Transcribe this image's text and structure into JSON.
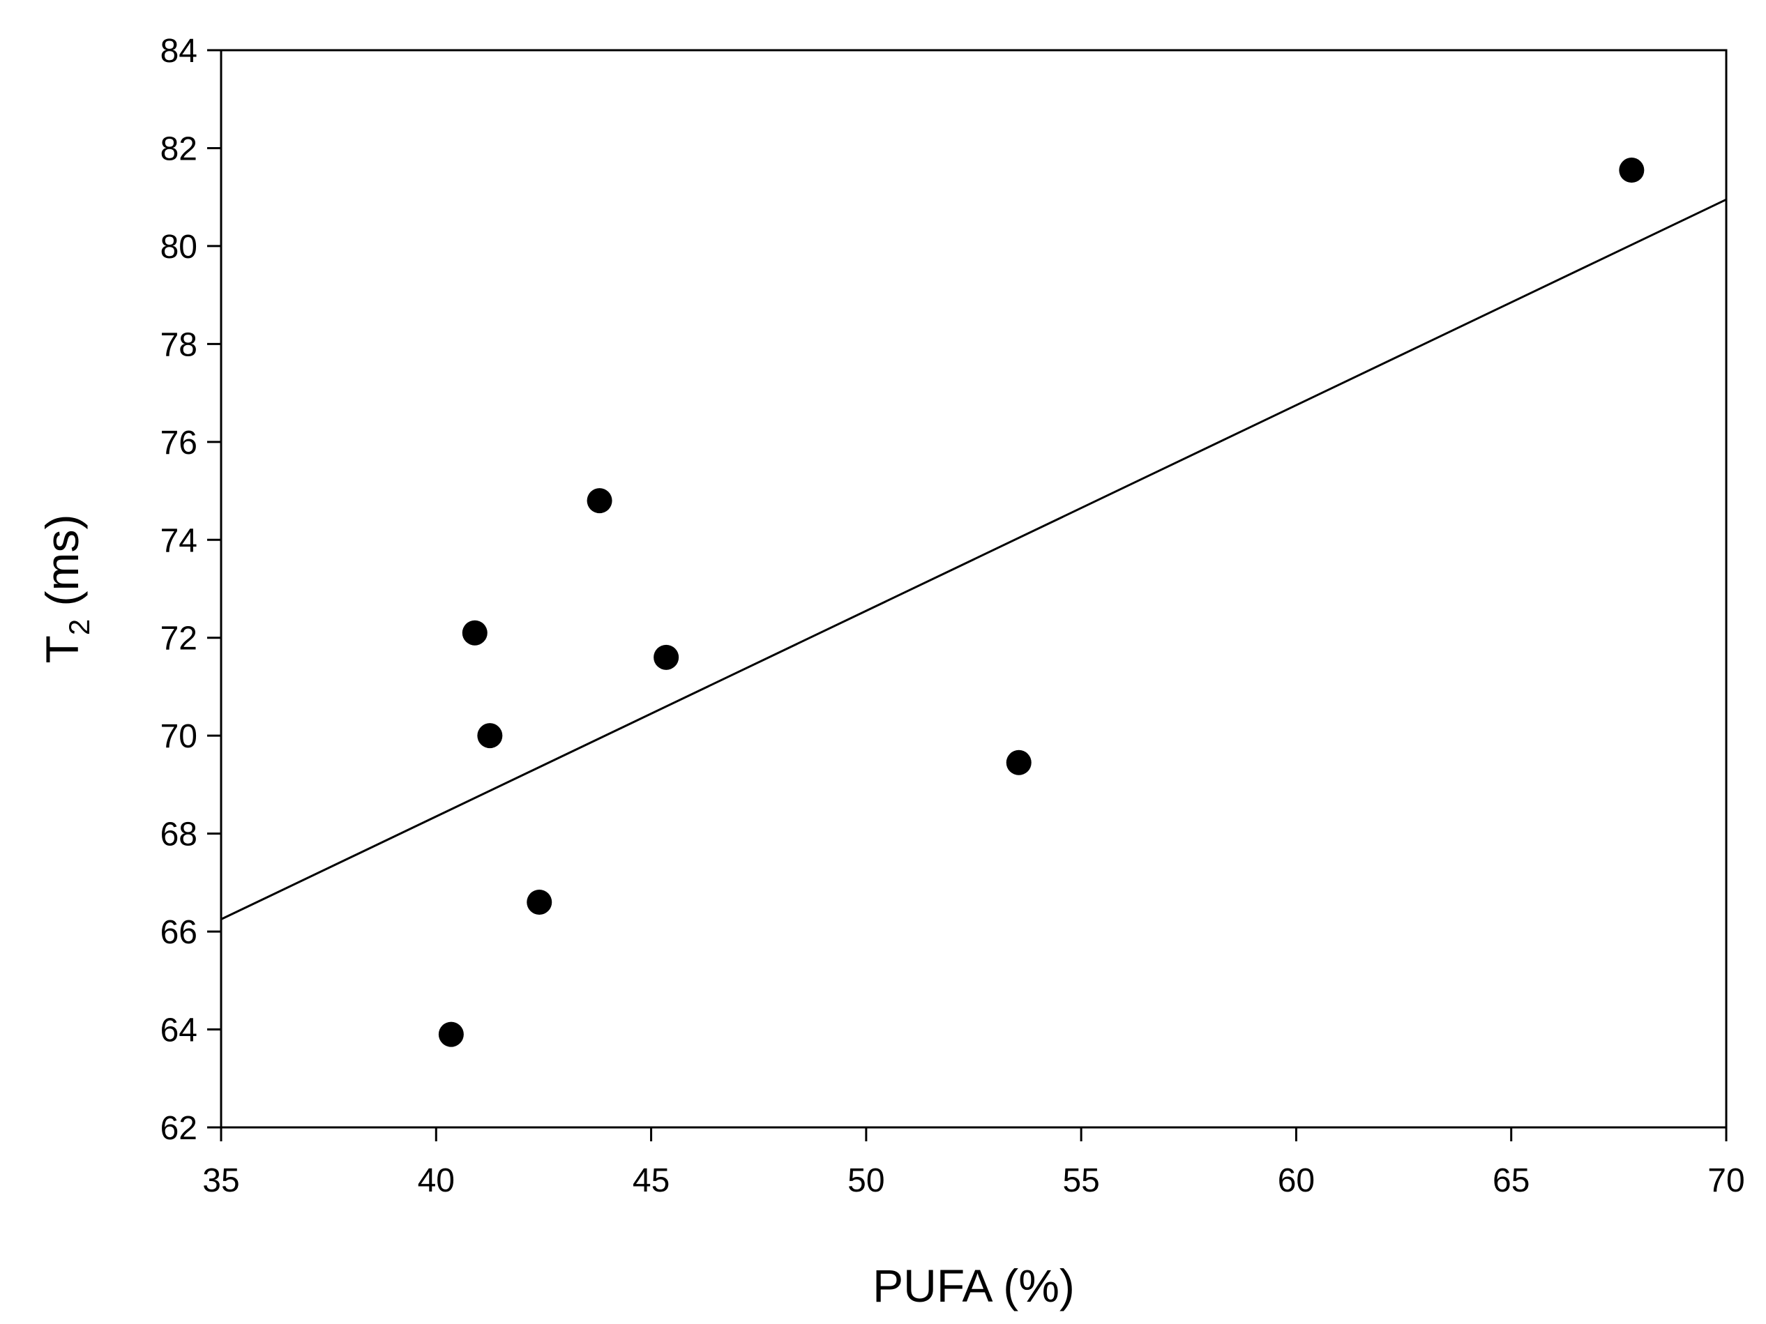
{
  "chart_data": {
    "type": "scatter",
    "title": "",
    "xlabel": "PUFA (%)",
    "ylabel": {
      "main": "T",
      "subscript": "2",
      "suffix": " (ms)"
    },
    "xlim": [
      35,
      70
    ],
    "ylim": [
      62,
      84
    ],
    "x_ticks": [
      35,
      40,
      45,
      50,
      55,
      60,
      65,
      70
    ],
    "y_ticks": [
      62,
      64,
      66,
      68,
      70,
      72,
      74,
      76,
      78,
      80,
      82,
      84
    ],
    "grid": false,
    "legend": "none",
    "marker_color": "#000000",
    "series": [
      {
        "points": [
          {
            "x": 40.35,
            "y": 63.9
          },
          {
            "x": 40.9,
            "y": 72.1
          },
          {
            "x": 41.25,
            "y": 70.0
          },
          {
            "x": 42.4,
            "y": 66.6
          },
          {
            "x": 43.8,
            "y": 74.8
          },
          {
            "x": 45.35,
            "y": 71.6
          },
          {
            "x": 53.55,
            "y": 69.45
          },
          {
            "x": 67.8,
            "y": 81.55
          }
        ]
      }
    ],
    "fit_line": {
      "points": [
        {
          "x": 35,
          "y": 66.25
        },
        {
          "x": 70,
          "y": 80.95
        }
      ]
    }
  }
}
